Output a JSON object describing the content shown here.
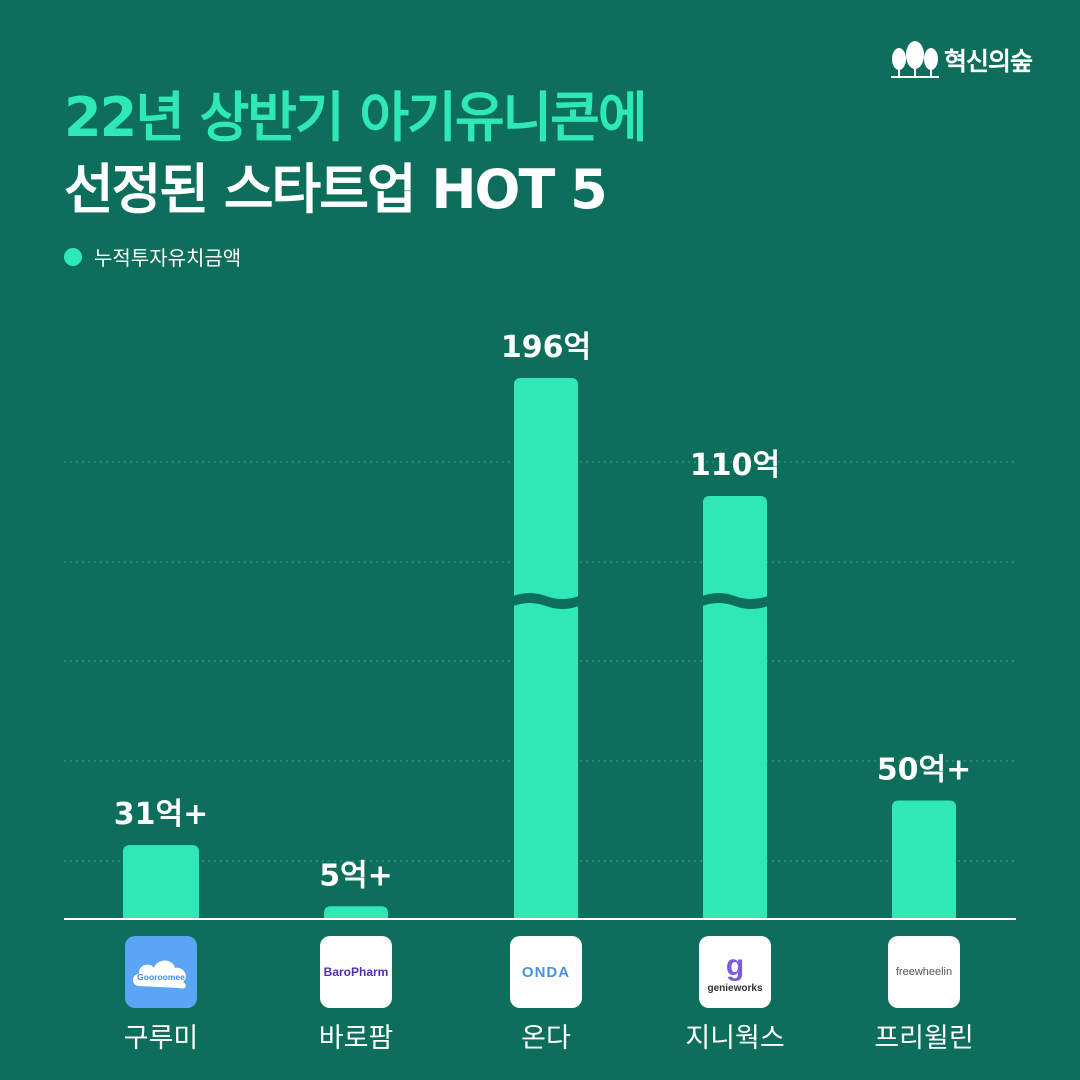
{
  "brand": {
    "name": "혁신의숲"
  },
  "title": {
    "line1": "22년 상반기 아기유니콘에",
    "line2": "선정된 스타트업 HOT 5"
  },
  "legend": {
    "label": "누적투자유치금액"
  },
  "colors": {
    "background": "#0d6e5b",
    "bar": "#2ee8b6",
    "accent": "#2ee8b6"
  },
  "chart_data": {
    "type": "bar",
    "categories": [
      "구루미",
      "바로팜",
      "온다",
      "지니웍스",
      "프리윌린"
    ],
    "values": [
      31,
      5,
      196,
      110,
      50
    ],
    "value_labels": [
      "31억+",
      "5억+",
      "196억",
      "110억",
      "50억+"
    ],
    "axis_break": {
      "series_indices": [
        2,
        3
      ]
    },
    "series": [
      {
        "name": "누적투자유치금액",
        "values": [
          31,
          5,
          196,
          110,
          50
        ]
      }
    ],
    "grid": true,
    "legend_position": "top-left"
  },
  "logos": [
    {
      "name": "gooroomee",
      "text": "Gooroomee"
    },
    {
      "name": "barofarm",
      "text": "BaroPharm"
    },
    {
      "name": "onda",
      "text": "ONDA"
    },
    {
      "name": "genieworks",
      "text": "genieworks",
      "glyph": "g"
    },
    {
      "name": "freewheelin",
      "text": "freewheelin"
    }
  ]
}
